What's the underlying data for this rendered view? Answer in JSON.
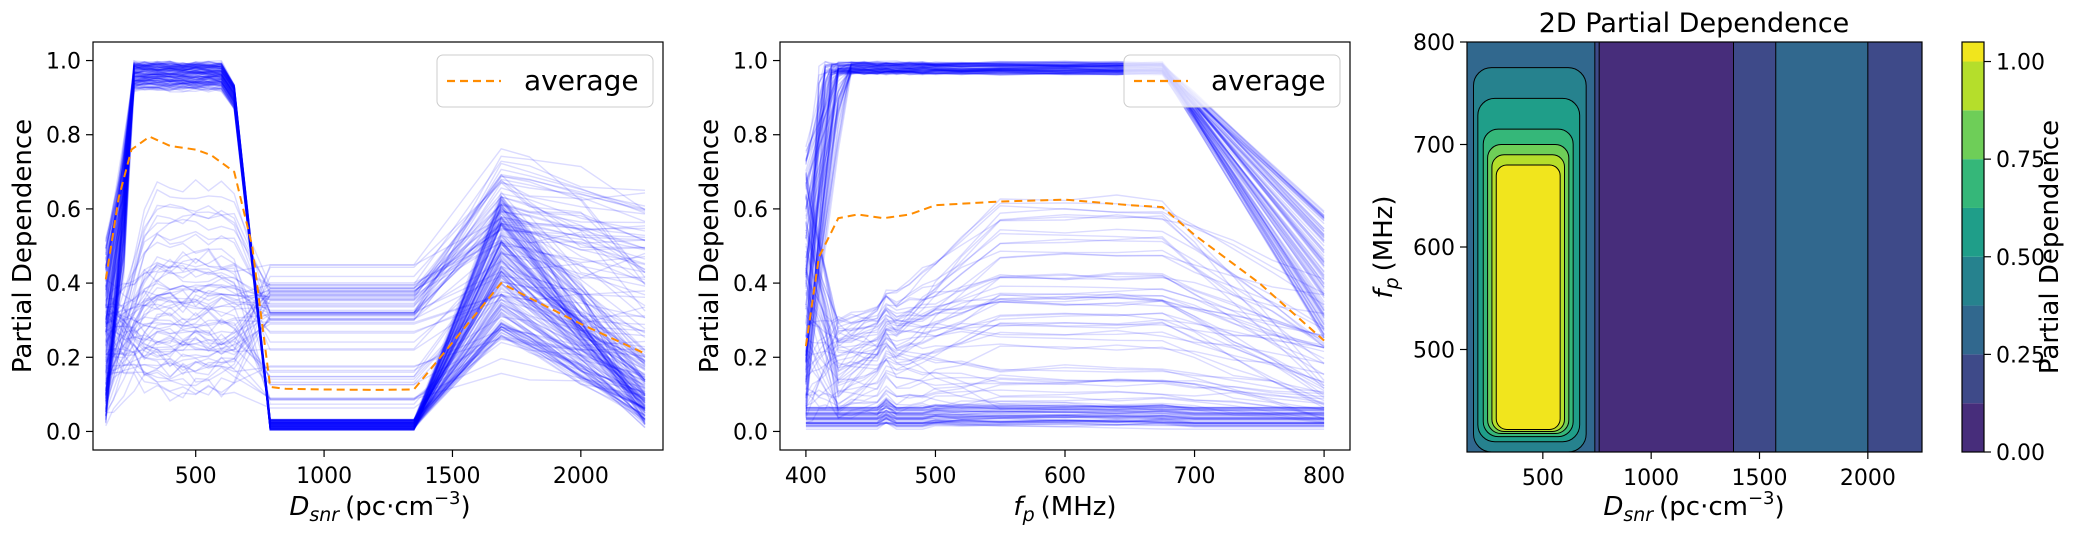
{
  "figure": {
    "description_type": "partial dependence plots"
  },
  "chart_data": [
    {
      "type": "line",
      "panel": "pdp-dsnr",
      "xlabel": {
        "main": "D",
        "sub": "snr",
        "unit": "(pc·cm",
        "sup": "−3",
        "close": ")"
      },
      "ylabel": "Partial Dependence",
      "xlim": [
        100,
        2320
      ],
      "ylim": [
        -0.05,
        1.05
      ],
      "xticks": [
        500,
        1000,
        1500,
        2000
      ],
      "xtick_labels": [
        "500",
        "1000",
        "1500",
        "2000"
      ],
      "yticks": [
        0.0,
        0.2,
        0.4,
        0.6,
        0.8,
        1.0
      ],
      "ytick_labels": [
        "0.0",
        "0.2",
        "0.4",
        "0.6",
        "0.8",
        "1.0"
      ],
      "legend": {
        "label": "average",
        "position": "top-right"
      },
      "ice_color": "#0000ff",
      "average_color": "#ff8c00",
      "average": {
        "x": [
          150,
          200,
          250,
          320,
          400,
          500,
          560,
          650,
          720,
          790,
          850,
          1000,
          1200,
          1350,
          1690,
          1800,
          2000,
          2250
        ],
        "y": [
          0.41,
          0.63,
          0.76,
          0.795,
          0.77,
          0.76,
          0.745,
          0.7,
          0.5,
          0.12,
          0.115,
          0.113,
          0.112,
          0.113,
          0.4,
          0.36,
          0.29,
          0.21
        ]
      }
    },
    {
      "type": "line",
      "panel": "pdp-fp",
      "xlabel": {
        "main": "f",
        "sub": "p",
        "unit": "(MHz)"
      },
      "ylabel": "Partial Dependence",
      "xlim": [
        380,
        820
      ],
      "ylim": [
        -0.05,
        1.05
      ],
      "xticks": [
        400,
        500,
        600,
        700,
        800
      ],
      "xtick_labels": [
        "400",
        "500",
        "600",
        "700",
        "800"
      ],
      "yticks": [
        0.0,
        0.2,
        0.4,
        0.6,
        0.8,
        1.0
      ],
      "ytick_labels": [
        "0.0",
        "0.2",
        "0.4",
        "0.6",
        "0.8",
        "1.0"
      ],
      "legend": {
        "label": "average",
        "position": "top-right"
      },
      "ice_color": "#0000ff",
      "average_color": "#ff8c00",
      "average": {
        "x": [
          400,
          410,
          425,
          440,
          460,
          480,
          500,
          550,
          600,
          650,
          675,
          700,
          750,
          800
        ],
        "y": [
          0.23,
          0.47,
          0.575,
          0.585,
          0.575,
          0.585,
          0.61,
          0.62,
          0.625,
          0.61,
          0.605,
          0.53,
          0.4,
          0.245
        ]
      }
    },
    {
      "type": "heatmap",
      "panel": "pdp-2d",
      "title": "2D Partial Dependence",
      "xlabel": {
        "main": "D",
        "sub": "snr",
        "unit": "(pc·cm",
        "sup": "−3",
        "close": ")"
      },
      "ylabel": {
        "main": "f",
        "sub": "p",
        "unit": "(MHz)"
      },
      "xlim": [
        150,
        2250
      ],
      "ylim": [
        400,
        800
      ],
      "xticks": [
        500,
        1000,
        1500,
        2000
      ],
      "xtick_labels": [
        "500",
        "1000",
        "1500",
        "2000"
      ],
      "yticks": [
        500,
        600,
        700,
        800
      ],
      "ytick_labels": [
        "500",
        "600",
        "700",
        "800"
      ],
      "levels": [
        0.0,
        0.125,
        0.25,
        0.375,
        0.5,
        0.625,
        0.75,
        0.875,
        1.0,
        1.05
      ],
      "level_colors": [
        "#472d7b",
        "#3e4a89",
        "#31688e",
        "#26828e",
        "#1f9e89",
        "#35b779",
        "#6ece58",
        "#b5de2b",
        "#f1e51d"
      ],
      "colorbar": {
        "label": "Partial Dependence",
        "ticks": [
          0.0,
          0.25,
          0.5,
          0.75,
          1.0
        ],
        "tick_labels": [
          "0.00",
          "0.25",
          "0.50",
          "0.75",
          "1.00"
        ],
        "range": [
          0.0,
          1.05
        ]
      },
      "regions": [
        {
          "level": 1,
          "x": [
            150,
            760
          ],
          "y": [
            400,
            800
          ]
        },
        {
          "level": 2,
          "x": [
            150,
            740
          ],
          "y": [
            400,
            800
          ]
        },
        {
          "level": 3,
          "x": [
            180,
            700
          ],
          "y": [
            400,
            775
          ]
        },
        {
          "level": 4,
          "x": [
            200,
            670
          ],
          "y": [
            410,
            745
          ]
        },
        {
          "level": 5,
          "x": [
            225,
            640
          ],
          "y": [
            415,
            715
          ]
        },
        {
          "level": 6,
          "x": [
            245,
            620
          ],
          "y": [
            418,
            700
          ]
        },
        {
          "level": 7,
          "x": [
            265,
            600
          ],
          "y": [
            420,
            690
          ]
        },
        {
          "level": 8,
          "x": [
            285,
            580
          ],
          "y": [
            422,
            680
          ]
        },
        {
          "level": 0,
          "x": [
            760,
            1380
          ],
          "y": [
            400,
            800
          ]
        },
        {
          "level": 1,
          "x": [
            1380,
            2250
          ],
          "y": [
            400,
            800
          ]
        },
        {
          "level": 2,
          "x": [
            1575,
            2000
          ],
          "y": [
            400,
            800
          ]
        }
      ]
    }
  ]
}
